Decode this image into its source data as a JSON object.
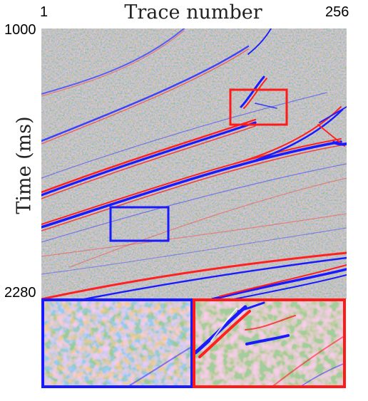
{
  "figure": {
    "title": "Trace number",
    "ylabel": "Time (ms)",
    "x_tick_left": "1",
    "x_tick_right": "256",
    "y_tick_top": "1000",
    "y_tick_bottom": "2280"
  },
  "colors": {
    "positive": "#ff2020",
    "negative": "#1a1aff",
    "background": "#ffffff",
    "blue_box": "#1a1aff",
    "red_box": "#ff1a1a"
  },
  "panels": {
    "main": "seismic-section",
    "zoom_left": "blue-box-zoom",
    "zoom_right": "red-box-zoom"
  }
}
